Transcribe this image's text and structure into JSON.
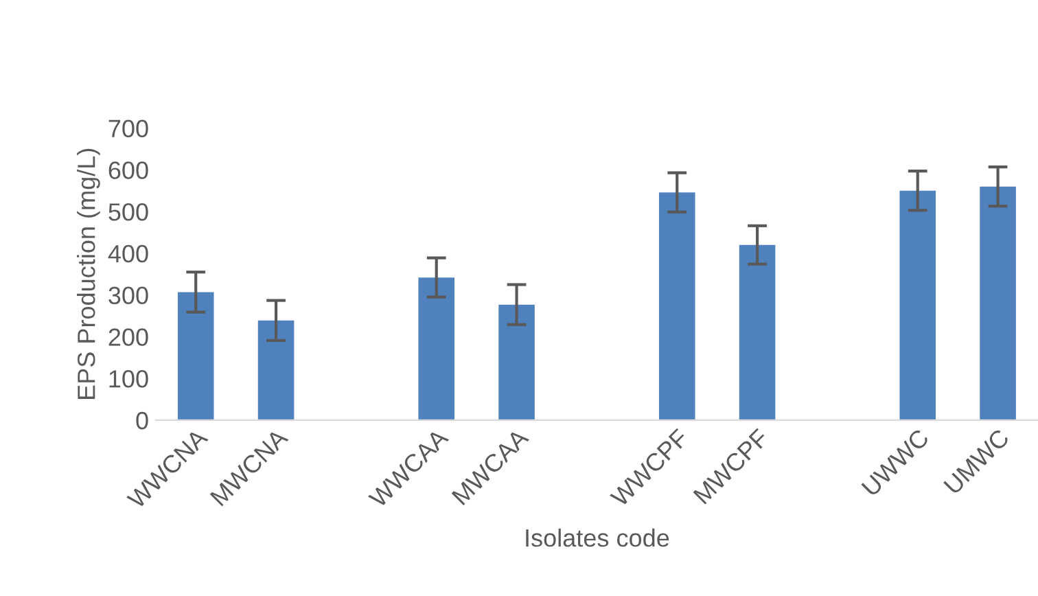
{
  "chart_data": {
    "type": "bar",
    "xlabel": "Isolates code",
    "ylabel": "EPS Production (mg/L)",
    "categories": [
      "WWCNA",
      "MWCNA",
      null,
      "WWCAA",
      "MWCAA",
      null,
      "WWCPF",
      "MWCPF",
      null,
      "UWWC",
      "UMWC"
    ],
    "values": [
      307,
      239,
      null,
      342,
      277,
      null,
      546,
      420,
      null,
      550,
      560
    ],
    "errors": [
      48,
      48,
      null,
      47,
      48,
      null,
      47,
      46,
      null,
      47,
      47
    ],
    "color": "#4f81bd",
    "ylim": [
      0,
      700
    ],
    "yticks": [
      0,
      100,
      200,
      300,
      400,
      500,
      600,
      700
    ],
    "grid": false,
    "legend": false
  }
}
